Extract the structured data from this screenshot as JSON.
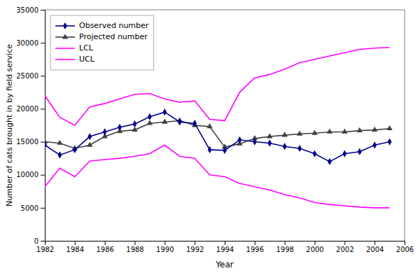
{
  "chart_data": {
    "type": "line",
    "x": [
      1982,
      1983,
      1984,
      1985,
      1986,
      1987,
      1988,
      1989,
      1990,
      1991,
      1992,
      1993,
      1994,
      1995,
      1996,
      1997,
      1998,
      1999,
      2000,
      2001,
      2002,
      2003,
      2004,
      2005
    ],
    "series": [
      {
        "name": "Observed number",
        "color": "#00008B",
        "marker": "diamond",
        "values": [
          14500,
          13000,
          13800,
          15800,
          16500,
          17200,
          17700,
          18800,
          19500,
          18000,
          17800,
          13800,
          13700,
          15300,
          15000,
          14800,
          14300,
          14000,
          13200,
          12000,
          13200,
          13500,
          14500,
          15000
        ]
      },
      {
        "name": "Projected number",
        "color": "#404040",
        "marker": "triangle",
        "values": [
          15000,
          14800,
          14000,
          14500,
          15800,
          16600,
          16800,
          17800,
          18000,
          18200,
          17500,
          17300,
          14200,
          14700,
          15500,
          15800,
          16000,
          16200,
          16300,
          16500,
          16500,
          16700,
          16800,
          17000
        ]
      },
      {
        "name": "LCL",
        "color": "#FF00FF",
        "marker": "none",
        "values": [
          8200,
          11000,
          9700,
          12100,
          12300,
          12500,
          12800,
          13200,
          14500,
          12800,
          12500,
          10000,
          9700,
          8700,
          8200,
          7700,
          7000,
          6500,
          5800,
          5500,
          5300,
          5100,
          5000,
          5000
        ]
      },
      {
        "name": "UCL",
        "color": "#FF00FF",
        "marker": "none",
        "values": [
          22000,
          18700,
          17500,
          20300,
          20800,
          21500,
          22200,
          22300,
          21500,
          21000,
          21200,
          18400,
          18200,
          22500,
          24700,
          25200,
          26000,
          27000,
          27500,
          28000,
          28500,
          29000,
          29200,
          29300
        ]
      }
    ],
    "xlim": [
      1982,
      2006
    ],
    "ylim": [
      0,
      35000
    ],
    "xticks": [
      1982,
      1984,
      1986,
      1988,
      1990,
      1992,
      1994,
      1996,
      1998,
      2000,
      2002,
      2004,
      2006
    ],
    "yticks": [
      0,
      5000,
      10000,
      15000,
      20000,
      25000,
      30000,
      35000
    ],
    "xlabel": "Year",
    "ylabel": "Number of cats brought in by field service",
    "legend": "upper left",
    "grid": false
  }
}
